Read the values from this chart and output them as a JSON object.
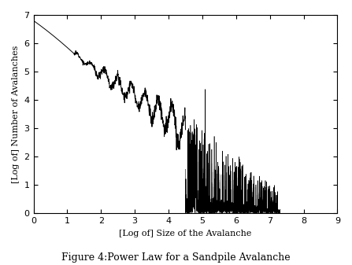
{
  "title": "Figure 4:Power Law for a Sandpile Avalanche",
  "xlabel": "[Log of] Size of the Avalanche",
  "ylabel": "[Log of] Number of Avalanches",
  "xlim": [
    0,
    9
  ],
  "ylim": [
    0,
    7
  ],
  "xticks": [
    0,
    1,
    2,
    3,
    4,
    5,
    6,
    7,
    8,
    9
  ],
  "yticks": [
    0,
    1,
    2,
    3,
    4,
    5,
    6,
    7
  ],
  "line_color": "black",
  "background_color": "white",
  "figsize": [
    4.47,
    3.37
  ],
  "dpi": 100,
  "smooth_seed": 12,
  "spike_seed": 7
}
